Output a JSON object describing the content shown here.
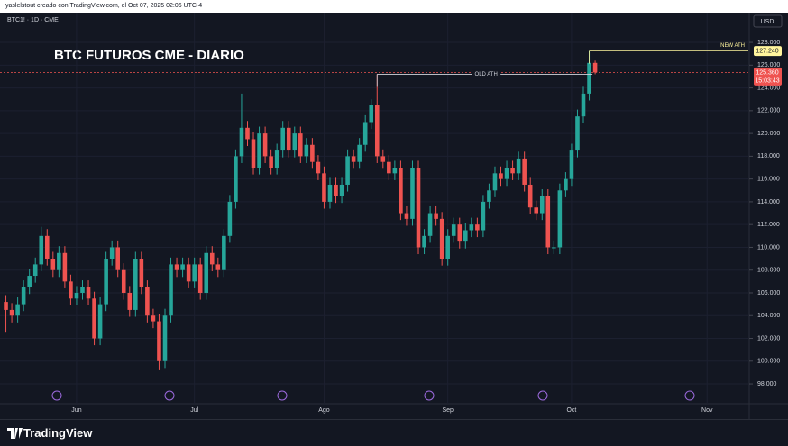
{
  "header": {
    "attribution": "yaslelstout creado con TradingView.com, el Oct 07, 2025 02:06 UTC-4"
  },
  "chart_data": {
    "type": "candlestick",
    "symbol": "BTC1! · 1D · CME",
    "title": "BTC FUTUROS CME - DIARIO",
    "currency": "USD",
    "up_color": "#26a69a",
    "down_color": "#ef5350",
    "grid": true,
    "open": [
      105200,
      104500,
      104000,
      105000,
      106500,
      107500,
      108500,
      111000,
      109000,
      108000,
      109500,
      107000,
      105500,
      106000,
      106500,
      105500,
      102000,
      105000,
      109000,
      110000,
      108000,
      106000,
      104500,
      109000,
      106500,
      104000,
      103500,
      100000,
      104000,
      108500,
      108000,
      108500,
      107000,
      108500,
      106000,
      109500,
      108500,
      108000,
      111000,
      114000,
      118000,
      120500,
      119500,
      117000,
      120000,
      118000,
      117000,
      118500,
      120500,
      118500,
      120000,
      118000,
      119000,
      117500,
      116500,
      114000,
      115500,
      114500,
      115500,
      118000,
      117500,
      119000,
      121000,
      122500,
      118000,
      117500,
      116500,
      117000,
      113000,
      112500,
      117000,
      110000,
      111000,
      113000,
      112500,
      109000,
      111000,
      112000,
      110500,
      111500,
      112000,
      111500,
      114000,
      115000,
      116500,
      116000,
      117000,
      116500,
      117800,
      115500,
      113500,
      113000,
      114500,
      110000,
      110000,
      115000,
      116000,
      118500,
      121500,
      123500,
      126200
    ],
    "high": [
      105800,
      105100,
      105600,
      107100,
      108100,
      109100,
      111800,
      111600,
      109600,
      110100,
      110100,
      107600,
      106600,
      107100,
      107100,
      106100,
      105600,
      109600,
      110600,
      110600,
      108600,
      106600,
      109600,
      109600,
      107100,
      104600,
      104100,
      104600,
      109100,
      109100,
      109100,
      109100,
      109100,
      109100,
      110100,
      110100,
      109100,
      111600,
      114600,
      118600,
      123500,
      121100,
      120100,
      120600,
      120600,
      118600,
      119100,
      121100,
      121100,
      120600,
      120600,
      119600,
      119600,
      118100,
      117100,
      116100,
      116100,
      116100,
      118600,
      118600,
      119600,
      121600,
      123000,
      125200,
      118600,
      118100,
      117600,
      117600,
      113600,
      117600,
      117600,
      111600,
      113600,
      113600,
      113100,
      111600,
      112600,
      112600,
      112100,
      112600,
      112600,
      114600,
      115600,
      117100,
      117100,
      117600,
      117600,
      118400,
      118400,
      116100,
      114100,
      115100,
      115100,
      110600,
      115600,
      116600,
      119100,
      122100,
      124100,
      127240,
      126400
    ],
    "low": [
      102500,
      103400,
      103400,
      104400,
      105900,
      106900,
      107900,
      108400,
      107400,
      107400,
      106400,
      104900,
      104900,
      105400,
      104900,
      101400,
      101400,
      104400,
      108400,
      107400,
      105400,
      103900,
      103900,
      105900,
      103400,
      102900,
      99200,
      99400,
      103400,
      107400,
      107400,
      106400,
      106400,
      105400,
      105400,
      107900,
      107400,
      107400,
      110400,
      113400,
      117400,
      118900,
      116400,
      116400,
      117400,
      116400,
      116400,
      117900,
      117900,
      117900,
      117400,
      117400,
      116900,
      115900,
      113400,
      113400,
      113900,
      113900,
      114900,
      116900,
      116900,
      118400,
      120400,
      117400,
      116900,
      115900,
      115900,
      112400,
      111900,
      111900,
      109400,
      109400,
      110400,
      111900,
      108400,
      108400,
      110400,
      109900,
      109900,
      110900,
      110900,
      110900,
      113400,
      114400,
      115400,
      115400,
      115900,
      115900,
      114900,
      112900,
      112400,
      112400,
      109400,
      109400,
      109400,
      114400,
      115400,
      117900,
      120900,
      122900,
      125200
    ],
    "close": [
      104500,
      104000,
      105000,
      106500,
      107500,
      108500,
      111000,
      109000,
      108000,
      109500,
      107000,
      105500,
      106000,
      106500,
      105500,
      102000,
      105000,
      109000,
      110000,
      108000,
      106000,
      104500,
      109000,
      106500,
      104000,
      103500,
      100000,
      104000,
      108500,
      108000,
      108500,
      107000,
      108500,
      106000,
      109500,
      108500,
      108000,
      111000,
      114000,
      118000,
      120500,
      119500,
      117000,
      120000,
      118000,
      117000,
      118500,
      120500,
      118500,
      120000,
      118000,
      119000,
      117500,
      116500,
      114000,
      115500,
      114500,
      115500,
      118000,
      117500,
      119000,
      121000,
      122500,
      118000,
      117500,
      116500,
      117000,
      113000,
      112500,
      117000,
      110000,
      111000,
      113000,
      112500,
      109000,
      111000,
      112000,
      110500,
      111500,
      112000,
      111500,
      114000,
      115000,
      116500,
      116000,
      117000,
      116500,
      117800,
      115500,
      113500,
      113000,
      114500,
      110000,
      110000,
      115000,
      116000,
      118500,
      121500,
      123500,
      126200,
      125360
    ],
    "last_price_label": "125.360",
    "countdown": "15:03:43",
    "annotations": [
      {
        "text": "OLD ATH",
        "value": 125200,
        "color": "#d1d4dc"
      },
      {
        "text": "NEW ATH",
        "value": 127240,
        "value_label": "127.240",
        "color": "#fff59d"
      }
    ],
    "xlim": [
      -1,
      126
    ],
    "xticks": [
      {
        "value": 12,
        "label": "Jun"
      },
      {
        "value": 32,
        "label": "Jul"
      },
      {
        "value": 54,
        "label": "Ago"
      },
      {
        "value": 75,
        "label": "Sep"
      },
      {
        "value": 96,
        "label": "Oct"
      },
      {
        "value": 119,
        "label": "Nov"
      }
    ],
    "ylim": [
      96500,
      129350
    ],
    "yticks": [
      {
        "value": 98000,
        "label": "98.000"
      },
      {
        "value": 100000,
        "label": "100.000"
      },
      {
        "value": 102000,
        "label": "102.000"
      },
      {
        "value": 104000,
        "label": "104.000"
      },
      {
        "value": 106000,
        "label": "106.000"
      },
      {
        "value": 108000,
        "label": "108.000"
      },
      {
        "value": 110000,
        "label": "110.000"
      },
      {
        "value": 112000,
        "label": "112.000"
      },
      {
        "value": 114000,
        "label": "114.000"
      },
      {
        "value": 116000,
        "label": "116.000"
      },
      {
        "value": 118000,
        "label": "118.000"
      },
      {
        "value": 120000,
        "label": "120.000"
      },
      {
        "value": 122000,
        "label": "122.000"
      },
      {
        "value": 124000,
        "label": "124.000"
      },
      {
        "value": 126000,
        "label": "126.000"
      },
      {
        "value": 128000,
        "label": "128.000"
      }
    ]
  },
  "footer": {
    "brand": "TradingView"
  }
}
